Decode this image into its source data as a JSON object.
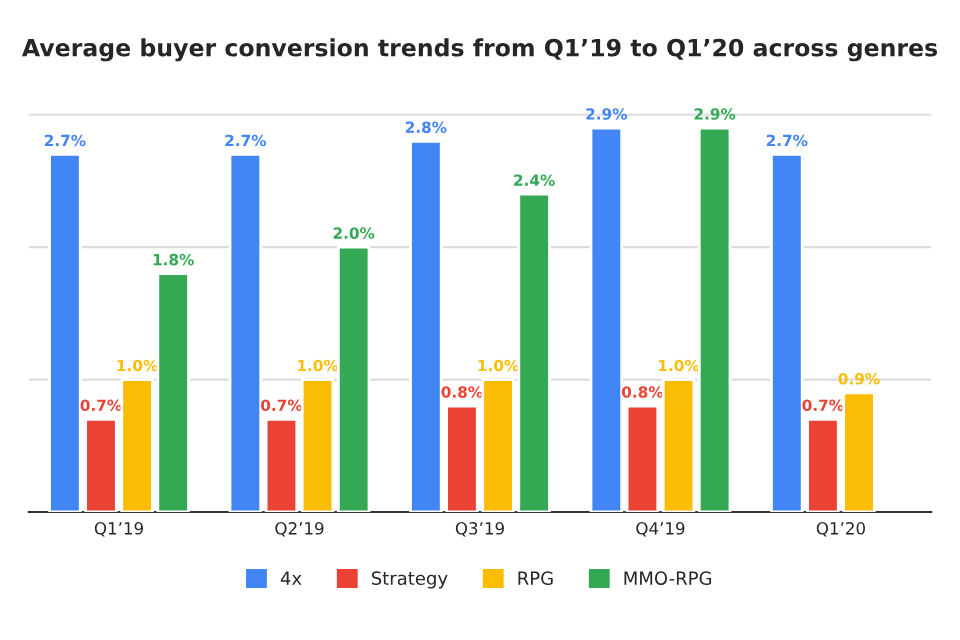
{
  "chart_data": {
    "type": "bar",
    "title": "Average buyer conversion trends from Q1’19 to Q1’20 across genres",
    "categories": [
      "Q1’19",
      "Q2’19",
      "Q3’19",
      "Q4’19",
      "Q1’20"
    ],
    "series": [
      {
        "name": "4x",
        "color": "#4285f4",
        "values": [
          2.7,
          2.7,
          2.8,
          2.9,
          2.7
        ],
        "value_labels": [
          "2.7%",
          "2.7%",
          "2.8%",
          "2.9%",
          "2.7%"
        ]
      },
      {
        "name": "Strategy",
        "color": "#ea4335",
        "values": [
          0.7,
          0.7,
          0.8,
          0.8,
          0.7
        ],
        "value_labels": [
          "0.7%",
          "0.7%",
          "0.8%",
          "0.8%",
          "0.7%"
        ]
      },
      {
        "name": "RPG",
        "color": "#fbbc04",
        "values": [
          1.0,
          1.0,
          1.0,
          1.0,
          0.9
        ],
        "value_labels": [
          "1.0%",
          "1.0%",
          "1.0%",
          "1.0%",
          "0.9%"
        ]
      },
      {
        "name": "MMO-RPG",
        "color": "#34a853",
        "values": [
          1.8,
          2.0,
          2.4,
          2.9,
          null
        ],
        "value_labels": [
          "1.8%",
          "2.0%",
          "2.4%",
          "2.9%",
          null
        ]
      }
    ],
    "ref_lines": [
      {
        "axis": "y",
        "value": 1,
        "color": "#dddddd"
      },
      {
        "axis": "y",
        "value": 2,
        "color": "#dddddd"
      },
      {
        "axis": "y",
        "value": 3,
        "color": "#dddddd"
      }
    ],
    "legend": "bottom",
    "tick_labels": "x"
  }
}
